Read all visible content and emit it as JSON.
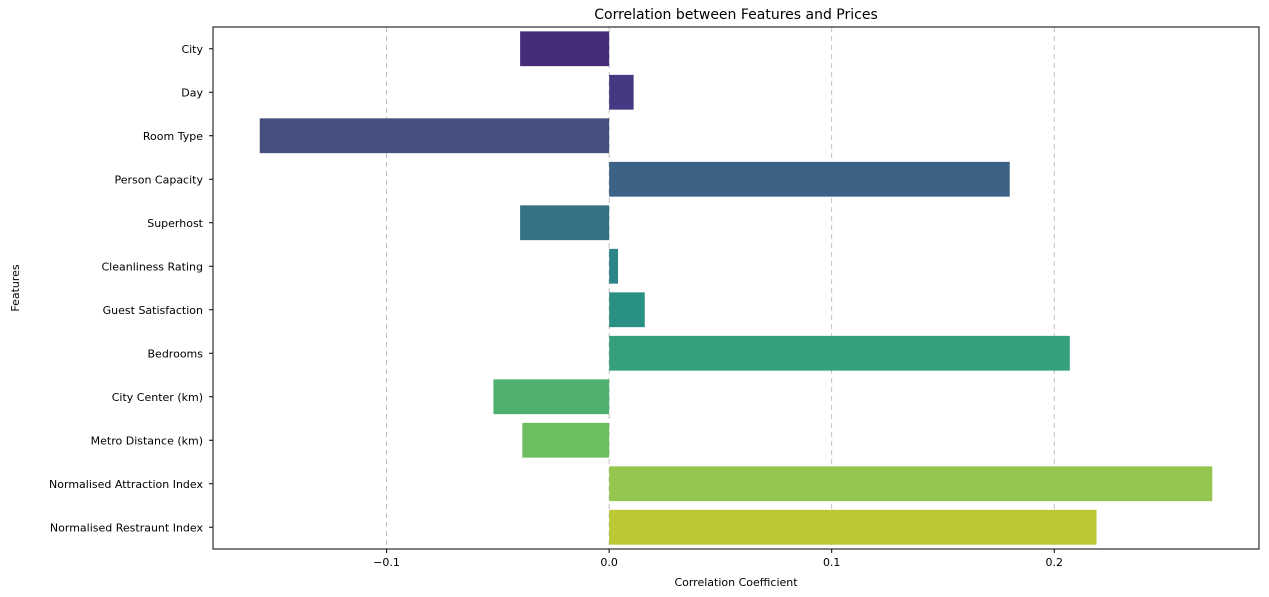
{
  "chart_data": {
    "type": "bar",
    "orientation": "horizontal",
    "title": "Correlation between Features and Prices",
    "xlabel": "Correlation Coefficient",
    "ylabel": "Features",
    "xlim": [
      -0.178,
      0.292
    ],
    "xticks": [
      -0.1,
      0.0,
      0.1,
      0.2
    ],
    "xtick_labels": [
      "−0.1",
      "0.0",
      "0.1",
      "0.2"
    ],
    "grid": "x-dashed",
    "categories": [
      "City",
      "Day",
      "Room Type",
      "Person Capacity",
      "Superhost",
      "Cleanliness Rating",
      "Guest Satisfaction",
      "Bedrooms",
      "City Center (km)",
      "Metro Distance (km)",
      "Normalised Attraction Index",
      "Normalised Restraunt Index"
    ],
    "values": [
      -0.04,
      0.011,
      -0.157,
      0.18,
      -0.04,
      0.004,
      0.016,
      0.207,
      -0.052,
      -0.039,
      0.271,
      0.219
    ],
    "colors": [
      "#472c7a",
      "#443a83",
      "#46507f",
      "#3c6285",
      "#357286",
      "#2c8589",
      "#2a9083",
      "#36a07b",
      "#50b06f",
      "#6dbe60",
      "#94c54e",
      "#bbc832"
    ]
  }
}
